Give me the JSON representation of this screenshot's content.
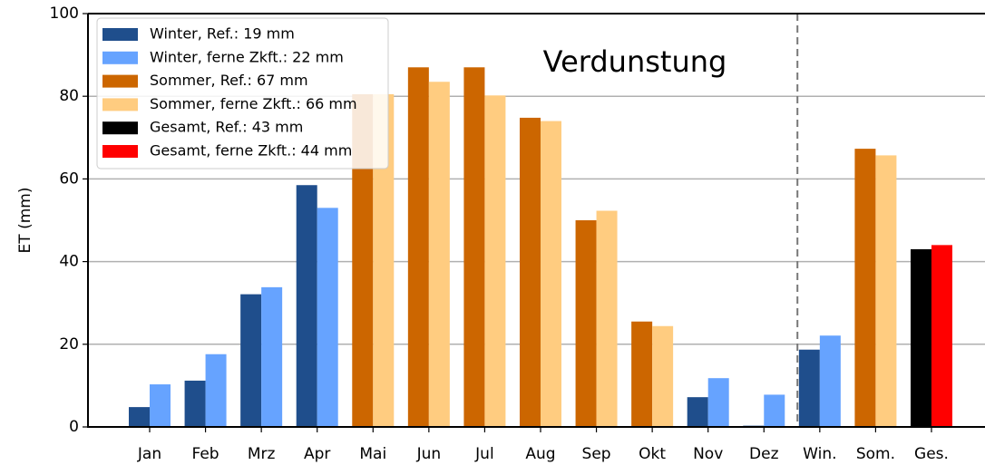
{
  "chart_data": {
    "type": "bar",
    "annotation": "Verdunstung",
    "ylabel": "ET (mm)",
    "categories": [
      "Jan",
      "Feb",
      "Mrz",
      "Apr",
      "Mai",
      "Jun",
      "Jul",
      "Aug",
      "Sep",
      "Okt",
      "Nov",
      "Dez",
      "Win.",
      "Som.",
      "Ges."
    ],
    "series": [
      {
        "name": "Winter, Ref.: 19 mm",
        "color": "#1f4e8c",
        "values": [
          4.8,
          11.2,
          32.1,
          58.5,
          null,
          null,
          null,
          null,
          null,
          null,
          7.2,
          0.3,
          18.7,
          null,
          null
        ]
      },
      {
        "name": "Winter, ferne Zkft.: 22 mm",
        "color": "#66a3ff",
        "values": [
          10.3,
          17.6,
          33.8,
          53.0,
          null,
          null,
          null,
          null,
          null,
          null,
          11.8,
          7.8,
          22.1,
          null,
          null
        ]
      },
      {
        "name": "Sommer, Ref.: 67 mm",
        "color": "#cc6600",
        "values": [
          null,
          null,
          null,
          null,
          80.5,
          87.0,
          87.0,
          74.8,
          50.0,
          25.5,
          null,
          null,
          null,
          67.3,
          null
        ]
      },
      {
        "name": "Sommer, ferne Zkft.: 66 mm",
        "color": "#ffcc80",
        "values": [
          null,
          null,
          null,
          null,
          80.5,
          83.5,
          80.2,
          74.0,
          52.3,
          24.4,
          null,
          null,
          null,
          65.7,
          null
        ]
      },
      {
        "name": "Gesamt, Ref.: 43 mm",
        "color": "#000000",
        "values": [
          null,
          null,
          null,
          null,
          null,
          null,
          null,
          null,
          null,
          null,
          null,
          null,
          null,
          null,
          43.0
        ]
      },
      {
        "name": "Gesamt, ferne Zkft.: 44 mm",
        "color": "#ff0000",
        "values": [
          null,
          null,
          null,
          null,
          null,
          null,
          null,
          null,
          null,
          null,
          null,
          null,
          null,
          null,
          44.0
        ]
      }
    ],
    "ylim": [
      0,
      100
    ],
    "yticks": [
      0,
      20,
      40,
      60,
      80,
      100
    ],
    "grid": true,
    "legend": "upper left"
  }
}
